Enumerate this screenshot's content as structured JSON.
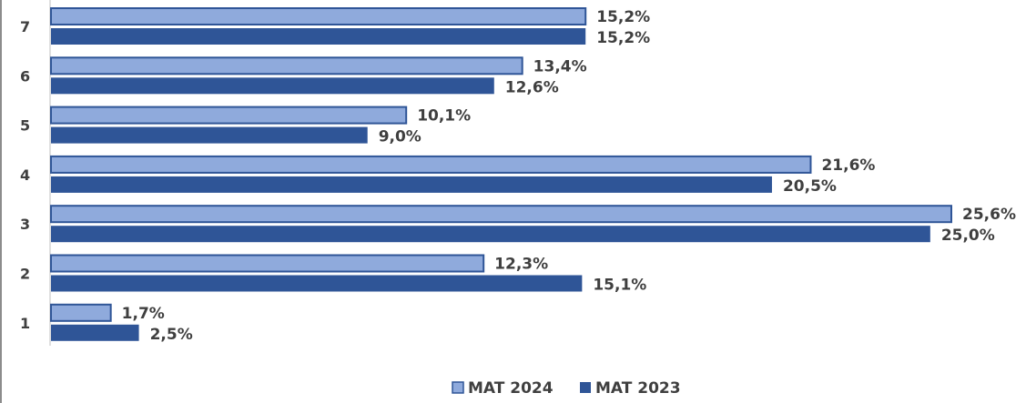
{
  "chart_data": {
    "type": "bar",
    "orientation": "horizontal",
    "categories": [
      "1",
      "2",
      "3",
      "4",
      "5",
      "6",
      "7"
    ],
    "series": [
      {
        "name": "MAT 2024",
        "color": "#8faadc",
        "values": [
          1.7,
          12.3,
          25.6,
          21.6,
          10.1,
          13.4,
          15.2
        ],
        "labels": [
          "1,7%",
          "12,3%",
          "25,6%",
          "21,6%",
          "10,1%",
          "13,4%",
          "15,2%"
        ]
      },
      {
        "name": "MAT 2023",
        "color": "#2f5597",
        "values": [
          2.5,
          15.1,
          25.0,
          20.5,
          9.0,
          12.6,
          15.2
        ],
        "labels": [
          "2,5%",
          "15,1%",
          "25,0%",
          "20,5%",
          "9,0%",
          "12,6%",
          "15,2%"
        ]
      }
    ],
    "xlim": [
      0,
      25.6
    ],
    "legend": {
      "position": "bottom-center",
      "order": [
        "MAT 2024",
        "MAT 2023"
      ]
    },
    "grid": false,
    "title": "",
    "xlabel": "",
    "ylabel": ""
  }
}
